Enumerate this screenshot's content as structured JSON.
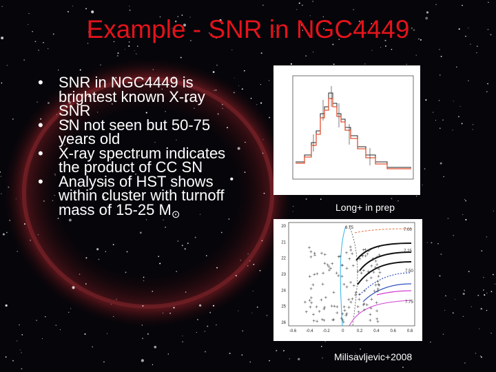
{
  "title": "Example - SNR in NGC4449",
  "bullets": [
    {
      "text": "SNR in NGC4449 is brightest known X-ray SNR"
    },
    {
      "text": "SN not seen but 50-75 years old"
    },
    {
      "text": "X-ray spectrum indicates the product of CC SN"
    },
    {
      "text": "Analysis of HST shows within cluster with turnoff mass of 15-25 M",
      "subscript": "⊙"
    }
  ],
  "figures": [
    {
      "caption": "Long+ in prep"
    },
    {
      "caption": "Milisavljevic+2008",
      "y_ticks": [
        "20",
        "21",
        "22",
        "23",
        "24",
        "25",
        "26"
      ],
      "x_ticks": [
        "-0.6",
        "-0.4",
        "-0.2",
        "0",
        "0.2",
        "0.4",
        "0.6",
        "0.8"
      ],
      "isochrone_labels": [
        "6.75",
        "7.00",
        "7.25",
        "7.50",
        "7.75"
      ]
    }
  ]
}
